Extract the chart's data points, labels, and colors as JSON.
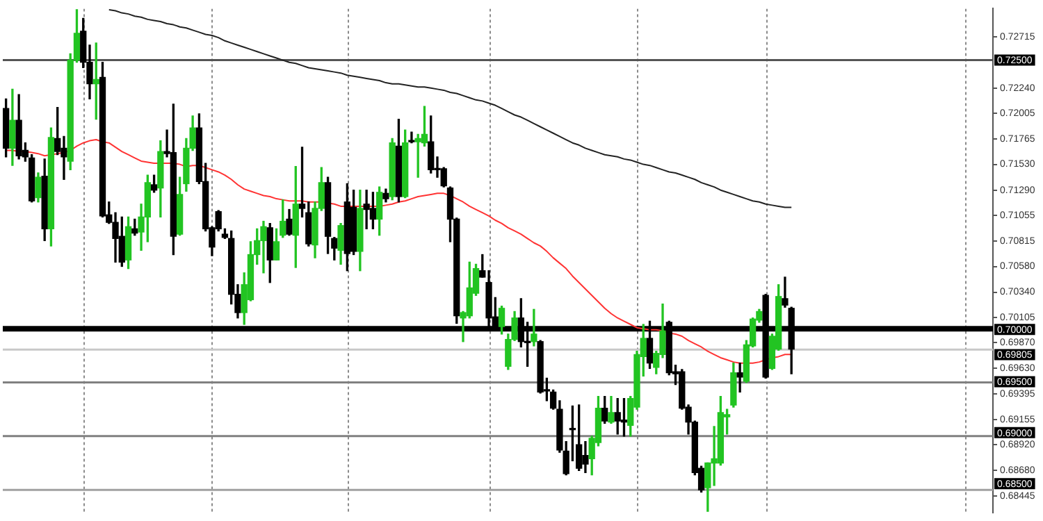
{
  "chart_data": {
    "type": "candlestick",
    "categories": [
      null,
      null,
      null,
      null,
      null,
      null,
      null,
      null,
      null,
      null,
      null,
      null,
      null,
      null,
      null,
      null,
      null,
      null,
      null,
      null,
      null,
      null,
      null,
      null,
      null,
      null,
      null,
      null,
      null,
      null,
      null,
      null,
      null,
      null,
      null,
      null,
      null,
      null,
      null,
      null,
      null,
      null,
      null,
      null,
      null,
      null,
      null,
      null,
      null,
      null,
      null,
      null,
      null,
      null,
      null,
      null,
      null,
      null,
      null,
      null,
      null,
      null,
      null,
      null,
      null,
      null,
      null,
      null,
      null,
      null,
      null,
      null,
      null,
      null,
      null,
      null,
      null,
      null,
      null,
      null,
      null,
      null,
      null,
      null,
      null,
      null,
      null,
      null,
      null,
      null,
      null,
      null,
      null,
      null,
      null,
      null,
      null,
      null,
      null,
      null,
      null,
      null,
      null,
      null,
      null,
      null,
      null,
      null,
      null,
      null,
      null,
      null,
      null,
      null,
      null,
      null,
      null,
      null,
      null,
      null,
      null,
      null,
      null
    ],
    "ohlc": [
      [
        0.7205,
        0.7214,
        0.716,
        0.7168
      ],
      [
        0.7168,
        0.7223,
        0.7152,
        0.7194
      ],
      [
        0.7194,
        0.7218,
        0.7158,
        0.7161
      ],
      [
        0.7166,
        0.7173,
        0.7156,
        0.716
      ],
      [
        0.7159,
        0.7162,
        0.7118,
        0.7119
      ],
      [
        0.7122,
        0.7145,
        0.7118,
        0.7141
      ],
      [
        0.7142,
        0.7158,
        0.7082,
        0.7093
      ],
      [
        0.7093,
        0.7187,
        0.7077,
        0.7178
      ],
      [
        0.7177,
        0.7206,
        0.7162,
        0.7165
      ],
      [
        0.7168,
        0.7179,
        0.7139,
        0.716
      ],
      [
        0.7156,
        0.7256,
        0.7148,
        0.725
      ],
      [
        0.725,
        0.7297,
        0.7248,
        0.7275
      ],
      [
        0.7277,
        0.7289,
        0.7243,
        0.7248
      ],
      [
        0.7248,
        0.7264,
        0.7214,
        0.7228
      ],
      [
        0.7228,
        0.7266,
        0.7195,
        0.7232
      ],
      [
        0.7234,
        0.7248,
        0.7104,
        0.7105
      ],
      [
        0.7106,
        0.7118,
        0.7098,
        0.7099
      ],
      [
        0.7099,
        0.7108,
        0.7062,
        0.7084
      ],
      [
        0.7086,
        0.7104,
        0.7058,
        0.7062
      ],
      [
        0.7064,
        0.7104,
        0.7056,
        0.7095
      ],
      [
        0.7093,
        0.7102,
        0.7087,
        0.7089
      ],
      [
        0.709,
        0.7116,
        0.7073,
        0.7104
      ],
      [
        0.7104,
        0.7143,
        0.7081,
        0.7136
      ],
      [
        0.7134,
        0.7143,
        0.7127,
        0.7129
      ],
      [
        0.7131,
        0.7175,
        0.7104,
        0.7165
      ],
      [
        0.7165,
        0.7185,
        0.716,
        0.7163
      ],
      [
        0.7164,
        0.7209,
        0.7069,
        0.7086
      ],
      [
        0.7088,
        0.7141,
        0.7087,
        0.7125
      ],
      [
        0.7135,
        0.7177,
        0.7128,
        0.7168
      ],
      [
        0.7168,
        0.7198,
        0.7166,
        0.7187
      ],
      [
        0.7187,
        0.72,
        0.7135,
        0.7137
      ],
      [
        0.7137,
        0.7154,
        0.7091,
        0.7093
      ],
      [
        0.7094,
        0.7095,
        0.7068,
        0.7076
      ],
      [
        0.7109,
        0.711,
        0.7091,
        0.7093
      ],
      [
        0.7088,
        0.7093,
        0.7084,
        0.7085
      ],
      [
        0.7084,
        0.7091,
        0.7023,
        0.7032
      ],
      [
        0.7032,
        0.7041,
        0.701,
        0.7015
      ],
      [
        0.7015,
        0.7052,
        0.7004,
        0.7041
      ],
      [
        0.7027,
        0.7081,
        0.7026,
        0.7069
      ],
      [
        0.7069,
        0.7093,
        0.706,
        0.7082
      ],
      [
        0.7082,
        0.71,
        0.7052,
        0.7095
      ],
      [
        0.7094,
        0.7098,
        0.7043,
        0.7064
      ],
      [
        0.7064,
        0.7093,
        0.7064,
        0.7081
      ],
      [
        0.7087,
        0.712,
        0.7085,
        0.71
      ],
      [
        0.7102,
        0.7111,
        0.7087,
        0.7088
      ],
      [
        0.7087,
        0.7151,
        0.7057,
        0.7116
      ],
      [
        0.7116,
        0.7169,
        0.7104,
        0.7112
      ],
      [
        0.7108,
        0.7118,
        0.7077,
        0.7079
      ],
      [
        0.7078,
        0.7118,
        0.7066,
        0.7112
      ],
      [
        0.7112,
        0.715,
        0.711,
        0.7136
      ],
      [
        0.7136,
        0.7141,
        0.707,
        0.7086
      ],
      [
        0.7084,
        0.7085,
        0.7064,
        0.7075
      ],
      [
        0.7073,
        0.7098,
        0.706,
        0.7096
      ],
      [
        0.7118,
        0.7135,
        0.7054,
        0.707
      ],
      [
        0.7113,
        0.7129,
        0.7069,
        0.7072
      ],
      [
        0.7072,
        0.7129,
        0.7054,
        0.7112
      ],
      [
        0.7116,
        0.7129,
        0.7093,
        0.7111
      ],
      [
        0.7112,
        0.7127,
        0.7093,
        0.7102
      ],
      [
        0.7102,
        0.7132,
        0.7087,
        0.7127
      ],
      [
        0.7126,
        0.713,
        0.7118,
        0.7121
      ],
      [
        0.7123,
        0.7177,
        0.712,
        0.7173
      ],
      [
        0.717,
        0.7195,
        0.7118,
        0.7123
      ],
      [
        0.7123,
        0.7185,
        0.7122,
        0.7173
      ],
      [
        0.7175,
        0.7183,
        0.7173,
        0.7174
      ],
      [
        0.7174,
        0.7181,
        0.7141,
        0.7177
      ],
      [
        0.7173,
        0.7207,
        0.717,
        0.7181
      ],
      [
        0.7174,
        0.7198,
        0.7145,
        0.7148
      ],
      [
        0.7149,
        0.716,
        0.7141,
        0.7148
      ],
      [
        0.7149,
        0.715,
        0.7132,
        0.7133
      ],
      [
        0.7131,
        0.7132,
        0.7081,
        0.7102
      ],
      [
        0.7102,
        0.7103,
        0.7005,
        0.7012
      ],
      [
        0.701,
        0.7016,
        0.6988,
        0.7015
      ],
      [
        0.7012,
        0.7062,
        0.701,
        0.7038
      ],
      [
        0.7033,
        0.706,
        0.7031,
        0.7056
      ],
      [
        0.7054,
        0.7069,
        0.7048,
        0.7048
      ],
      [
        0.7043,
        0.7054,
        0.6998,
        0.701
      ],
      [
        0.7011,
        0.7029,
        0.6998,
        0.7
      ],
      [
        0.7002,
        0.7021,
        0.6995,
        0.7019
      ],
      [
        0.6965,
        0.6995,
        0.6962,
        0.699
      ],
      [
        0.699,
        0.7016,
        0.6989,
        0.701
      ],
      [
        0.701,
        0.7028,
        0.6983,
        0.6988
      ],
      [
        0.6988,
        0.7006,
        0.6965,
        0.6987
      ],
      [
        0.6988,
        0.7018,
        0.6984,
        0.6995
      ],
      [
        0.6988,
        0.6989,
        0.694,
        0.6941
      ],
      [
        0.6943,
        0.6954,
        0.6933,
        0.6942
      ],
      [
        0.6941,
        0.6943,
        0.6925,
        0.6926
      ],
      [
        0.6925,
        0.6933,
        0.6885,
        0.6887
      ],
      [
        0.6886,
        0.6895,
        0.6864,
        0.6865
      ],
      [
        0.6907,
        0.6928,
        0.6877,
        0.6906
      ],
      [
        0.6892,
        0.6929,
        0.6868,
        0.687
      ],
      [
        0.6882,
        0.6895,
        0.6866,
        0.6874
      ],
      [
        0.6879,
        0.69,
        0.6864,
        0.6898
      ],
      [
        0.6894,
        0.6937,
        0.6891,
        0.6926
      ],
      [
        0.6926,
        0.6937,
        0.6912,
        0.6914
      ],
      [
        0.6913,
        0.6937,
        0.6912,
        0.6922
      ],
      [
        0.6922,
        0.6935,
        0.6902,
        0.6914
      ],
      [
        0.6915,
        0.6935,
        0.69,
        0.6913
      ],
      [
        0.691,
        0.6937,
        0.69,
        0.6935
      ],
      [
        0.6927,
        0.6979,
        0.6925,
        0.6976
      ],
      [
        0.6974,
        0.7004,
        0.6956,
        0.6991
      ],
      [
        0.6991,
        0.7007,
        0.6963,
        0.6968
      ],
      [
        0.6964,
        0.6979,
        0.6958,
        0.6977
      ],
      [
        0.6976,
        0.7023,
        0.6973,
        0.6998
      ],
      [
        0.7006,
        0.7007,
        0.6957,
        0.6959
      ],
      [
        0.696,
        0.6966,
        0.6948,
        0.6958
      ],
      [
        0.696,
        0.6962,
        0.6925,
        0.6926
      ],
      [
        0.6927,
        0.6929,
        0.6902,
        0.6913
      ],
      [
        0.6913,
        0.6914,
        0.6864,
        0.6866
      ],
      [
        0.687,
        0.6872,
        0.6848,
        0.685
      ],
      [
        0.6852,
        0.6875,
        0.683,
        0.6875
      ],
      [
        0.6875,
        0.6909,
        0.6854,
        0.6879
      ],
      [
        0.6875,
        0.6937,
        0.6873,
        0.6922
      ],
      [
        0.6918,
        0.6925,
        0.6902,
        0.692
      ],
      [
        0.6929,
        0.6968,
        0.6927,
        0.6959
      ],
      [
        0.6959,
        0.6968,
        0.6941,
        0.6955
      ],
      [
        0.6951,
        0.6989,
        0.695,
        0.6985
      ],
      [
        0.6984,
        0.701,
        0.6983,
        0.7009
      ],
      [
        0.7008,
        0.7018,
        0.7006,
        0.7016
      ],
      [
        0.7031,
        0.7032,
        0.6954,
        0.6955
      ],
      [
        0.6963,
        0.6995,
        0.6962,
        0.6993
      ],
      [
        0.6981,
        0.7041,
        0.698,
        0.703
      ],
      [
        0.7028,
        0.7048,
        0.702,
        0.7022
      ],
      [
        0.7019,
        0.702,
        0.6958,
        0.6981
      ]
    ],
    "colors": [
      "#000000",
      "#22c422",
      "#000000",
      "#000000",
      "#000000",
      "#22c422",
      "#000000",
      "#22c422",
      "#000000",
      "#000000",
      "#22c422",
      "#22c422",
      "#000000",
      "#000000",
      "#22c422",
      "#000000",
      "#000000",
      "#000000",
      "#000000",
      "#22c422",
      "#000000",
      "#22c422",
      "#22c422",
      "#000000",
      "#22c422",
      "#000000",
      "#000000",
      "#22c422",
      "#22c422",
      "#22c422",
      "#000000",
      "#000000",
      "#000000",
      "#000000",
      "#000000",
      "#000000",
      "#000000",
      "#22c422",
      "#22c422",
      "#22c422",
      "#22c422",
      "#000000",
      "#22c422",
      "#22c422",
      "#000000",
      "#22c422",
      "#000000",
      "#000000",
      "#22c422",
      "#22c422",
      "#000000",
      "#000000",
      "#22c422",
      "#000000",
      "#000000",
      "#22c422",
      "#000000",
      "#000000",
      "#22c422",
      "#000000",
      "#22c422",
      "#000000",
      "#22c422",
      "#000000",
      "#22c422",
      "#22c422",
      "#000000",
      "#000000",
      "#000000",
      "#000000",
      "#000000",
      "#22c422",
      "#22c422",
      "#22c422",
      "#000000",
      "#000000",
      "#000000",
      "#22c422",
      "#22c422",
      "#22c422",
      "#000000",
      "#000000",
      "#22c422",
      "#000000",
      "#000000",
      "#000000",
      "#000000",
      "#000000",
      "#000000",
      "#000000",
      "#000000",
      "#22c422",
      "#22c422",
      "#000000",
      "#22c422",
      "#000000",
      "#000000",
      "#22c422",
      "#22c422",
      "#22c422",
      "#000000",
      "#22c422",
      "#22c422",
      "#000000",
      "#000000",
      "#000000",
      "#000000",
      "#000000",
      "#000000",
      "#22c422",
      "#22c422",
      "#22c422",
      "#22c422",
      "#22c422",
      "#000000",
      "#22c422",
      "#22c422",
      "#22c422",
      "#000000",
      "#22c422",
      "#22c422",
      "#000000",
      "#000000"
    ],
    "series": [
      {
        "type": "line",
        "color": "#ff3333",
        "values": [
          0.7166,
          0.7166,
          0.7165,
          0.7165,
          0.7164,
          0.7163,
          0.7161,
          0.7162,
          0.7163,
          0.7164,
          0.7166,
          0.717,
          0.7173,
          0.7175,
          0.7176,
          0.7174,
          0.7173,
          0.7169,
          0.7165,
          0.7162,
          0.7159,
          0.7156,
          0.7155,
          0.7154,
          0.7154,
          0.7154,
          0.7154,
          0.7153,
          0.7151,
          0.7152,
          0.7152,
          0.715,
          0.7148,
          0.7146,
          0.7143,
          0.7139,
          0.7134,
          0.713,
          0.7128,
          0.7126,
          0.7124,
          0.7123,
          0.7121,
          0.712,
          0.7119,
          0.7119,
          0.7119,
          0.7118,
          0.7118,
          0.7118,
          0.7117,
          0.7116,
          0.7114,
          0.7114,
          0.7114,
          0.7114,
          0.7114,
          0.7114,
          0.7114,
          0.7115,
          0.7116,
          0.7118,
          0.7119,
          0.7121,
          0.7123,
          0.7124,
          0.7125,
          0.7126,
          0.7126,
          0.7124,
          0.7121,
          0.7118,
          0.7114,
          0.7111,
          0.7108,
          0.7105,
          0.7101,
          0.7098,
          0.7094,
          0.7091,
          0.7088,
          0.7084,
          0.708,
          0.7077,
          0.7072,
          0.7066,
          0.7061,
          0.7056,
          0.7049,
          0.7043,
          0.7037,
          0.7031,
          0.7025,
          0.7019,
          0.7014,
          0.701,
          0.7007,
          0.7004,
          0.7001,
          0.7,
          0.6999,
          0.6999,
          0.6998,
          0.6996,
          0.6995,
          0.6993,
          0.6989,
          0.6986,
          0.6983,
          0.6979,
          0.6976,
          0.6973,
          0.6971,
          0.6969,
          0.6968,
          0.6968,
          0.6968,
          0.6969,
          0.6971,
          0.6973,
          0.6974,
          0.6976,
          0.6976
        ]
      },
      {
        "type": "line",
        "color": "#222222",
        "values": [
          null,
          null,
          null,
          null,
          null,
          null,
          null,
          null,
          null,
          null,
          null,
          null,
          null,
          null,
          null,
          null,
          0.7297,
          0.7296,
          0.7294,
          0.7293,
          0.7291,
          0.729,
          0.7288,
          0.7287,
          0.7286,
          0.7284,
          0.7283,
          0.7281,
          0.728,
          0.7278,
          0.7276,
          0.7274,
          0.7273,
          0.7271,
          0.7268,
          0.7266,
          0.7264,
          0.7262,
          0.726,
          0.7258,
          0.7256,
          0.7254,
          0.7252,
          0.725,
          0.7248,
          0.7247,
          0.7245,
          0.7243,
          0.7242,
          0.7241,
          0.724,
          0.7239,
          0.7238,
          0.7236,
          0.7235,
          0.7234,
          0.7233,
          0.7232,
          0.7231,
          0.7229,
          0.7228,
          0.7228,
          0.7227,
          0.7226,
          0.7225,
          0.7225,
          0.7224,
          0.7223,
          0.7222,
          0.722,
          0.7219,
          0.7217,
          0.7215,
          0.7213,
          0.7212,
          0.721,
          0.7208,
          0.7205,
          0.7202,
          0.7199,
          0.7197,
          0.7194,
          0.7191,
          0.7188,
          0.7185,
          0.7182,
          0.7179,
          0.7176,
          0.7173,
          0.7171,
          0.7168,
          0.7166,
          0.7164,
          0.7162,
          0.7161,
          0.716,
          0.7158,
          0.7157,
          0.7155,
          0.7153,
          0.7152,
          0.715,
          0.7148,
          0.7146,
          0.7145,
          0.7143,
          0.7141,
          0.7139,
          0.7136,
          0.7134,
          0.7132,
          0.7129,
          0.7127,
          0.7125,
          0.7123,
          0.7121,
          0.7119,
          0.7118,
          0.7116,
          0.7115,
          0.7114,
          0.7113,
          0.7113
        ]
      }
    ],
    "ylim": [
      0.6829,
      0.7298
    ],
    "yticks": [
      {
        "value": 0.72715,
        "label": "0.72715"
      },
      {
        "value": 0.7224,
        "label": "0.72240"
      },
      {
        "value": 0.72005,
        "label": "0.72005"
      },
      {
        "value": 0.71765,
        "label": "0.71765"
      },
      {
        "value": 0.7153,
        "label": "0.71530"
      },
      {
        "value": 0.7129,
        "label": "0.71290"
      },
      {
        "value": 0.71055,
        "label": "0.71055"
      },
      {
        "value": 0.70815,
        "label": "0.70815"
      },
      {
        "value": 0.7058,
        "label": "0.70580"
      },
      {
        "value": 0.7034,
        "label": "0.70340"
      },
      {
        "value": 0.70105,
        "label": "0.70105"
      },
      {
        "value": 0.6987,
        "label": "0.69870"
      },
      {
        "value": 0.6963,
        "label": "0.69630"
      },
      {
        "value": 0.69395,
        "label": "0.69395"
      },
      {
        "value": 0.69155,
        "label": "0.69155"
      },
      {
        "value": 0.6892,
        "label": "0.68920"
      },
      {
        "value": 0.6868,
        "label": "0.68680"
      },
      {
        "value": 0.68445,
        "label": "0.68445"
      }
    ],
    "ref_lines": [
      {
        "axis": "y",
        "value": 0.725,
        "label": "0.72500",
        "color": "#555555"
      },
      {
        "axis": "y",
        "value": 0.7,
        "label": "0.70000",
        "color": "#000000"
      },
      {
        "axis": "y",
        "value": 0.69805,
        "label": "0.69805",
        "color": "#c8c8c8"
      },
      {
        "axis": "y",
        "value": 0.695,
        "label": "0.69500",
        "color": "#808080"
      },
      {
        "axis": "y",
        "value": 0.69,
        "label": "0.69000",
        "color": "#808080"
      },
      {
        "axis": "y",
        "value": 0.685,
        "label": "0.68500",
        "color": "#a0a0a0"
      }
    ],
    "tick_labels": "y",
    "marker": "none"
  }
}
